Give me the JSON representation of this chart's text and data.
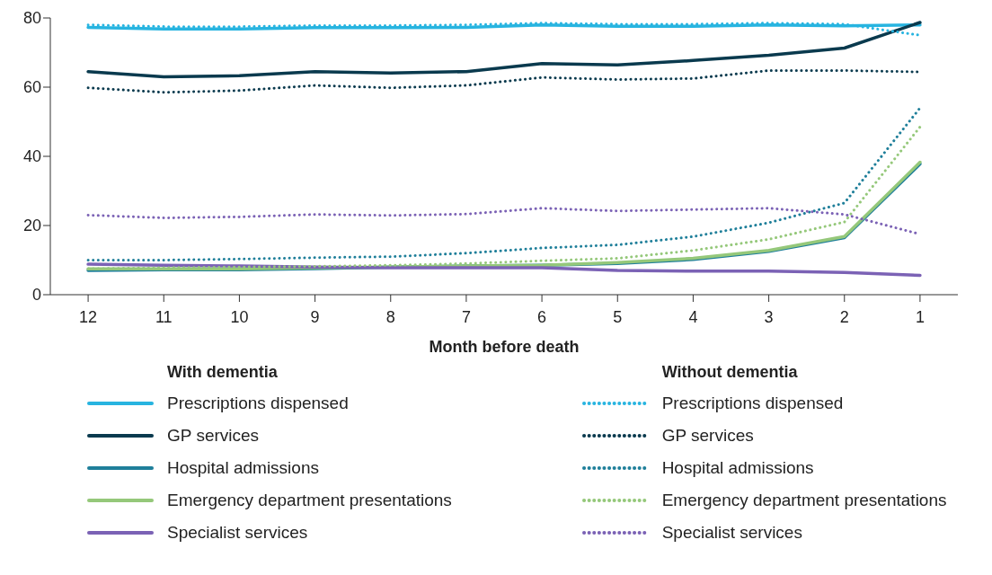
{
  "chart_data": {
    "type": "line",
    "xlabel": "Month before death",
    "categories": [
      "12",
      "11",
      "10",
      "9",
      "8",
      "7",
      "6",
      "5",
      "4",
      "3",
      "2",
      "1"
    ],
    "ylim": [
      0,
      80
    ],
    "yticks": [
      0,
      20,
      40,
      60,
      80
    ],
    "grid": false,
    "legend": "bottom",
    "marker": "none",
    "annotations": [
      "With dementia",
      "Without dementia"
    ],
    "series": [
      {
        "name": "Prescriptions dispensed",
        "color": "#27b4e0",
        "line_style": "solid",
        "values": [
          77.3,
          76.8,
          76.8,
          77.2,
          77.2,
          77.3,
          78,
          77.6,
          77.6,
          78,
          77.7,
          78
        ]
      },
      {
        "name": "GP services",
        "color": "#0a3a4e",
        "line_style": "solid",
        "values": [
          64.5,
          63,
          63.3,
          64.5,
          64.1,
          64.5,
          66.8,
          66.4,
          67.7,
          69.2,
          71.3,
          78.7
        ]
      },
      {
        "name": "Hospital admissions",
        "color": "#1f7f9a",
        "line_style": "solid",
        "values": [
          7,
          7.2,
          7.2,
          7.5,
          8,
          8.3,
          8.5,
          9,
          10.2,
          12.5,
          16.5,
          37.8
        ]
      },
      {
        "name": "Emergency department presentations",
        "color": "#95c87a",
        "line_style": "solid",
        "values": [
          7.5,
          7.5,
          7.5,
          7.8,
          8,
          8.3,
          8.5,
          9.3,
          10.5,
          12.8,
          16.8,
          38.3
        ]
      },
      {
        "name": "Specialist services",
        "color": "#7b62b5",
        "line_style": "solid",
        "values": [
          8.8,
          8.5,
          8.3,
          8,
          7.8,
          7.8,
          7.8,
          7,
          6.8,
          6.8,
          6.4,
          5.6
        ]
      },
      {
        "name": "Prescriptions dispensed",
        "color": "#27b4e0",
        "line_style": "dotted",
        "values": [
          78,
          77.5,
          77.5,
          77.8,
          77.8,
          78,
          78.5,
          78.2,
          78.2,
          78.5,
          78.2,
          75
        ]
      },
      {
        "name": "GP services",
        "color": "#0a3a4e",
        "line_style": "dotted",
        "values": [
          59.8,
          58.5,
          59,
          60.5,
          59.8,
          60.5,
          62.8,
          62.2,
          62.5,
          64.8,
          64.8,
          64.4
        ]
      },
      {
        "name": "Hospital admissions",
        "color": "#1f7f9a",
        "line_style": "dotted",
        "values": [
          10,
          10,
          10.3,
          10.7,
          11,
          12,
          13.5,
          14.4,
          16.8,
          20.8,
          26.5,
          54
        ]
      },
      {
        "name": "Emergency department presentations",
        "color": "#95c87a",
        "line_style": "dotted",
        "values": [
          7.5,
          7.8,
          8,
          8.2,
          8.5,
          9,
          9.8,
          10.5,
          12.8,
          16,
          21,
          48.5
        ]
      },
      {
        "name": "Specialist services",
        "color": "#7b62b5",
        "line_style": "dotted",
        "values": [
          23,
          22.2,
          22.5,
          23.2,
          22.9,
          23.3,
          25,
          24.2,
          24.6,
          25,
          23.2,
          17.5
        ]
      }
    ]
  }
}
